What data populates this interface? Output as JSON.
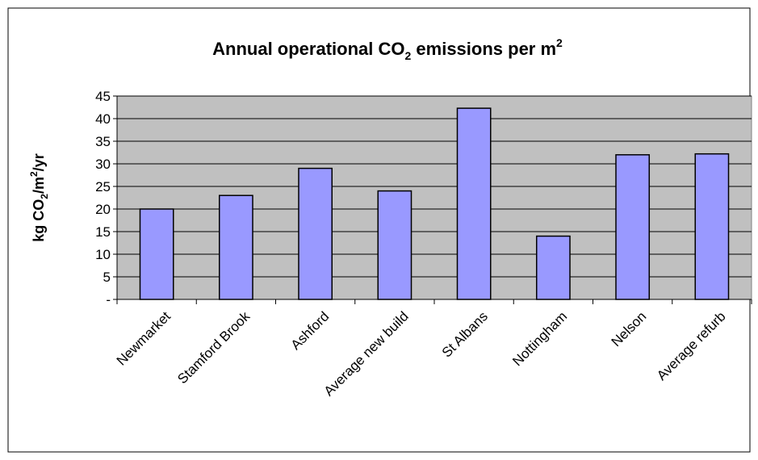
{
  "chart_data": {
    "type": "bar",
    "title_prefix": "Annual operational CO",
    "title_sub": "2",
    "title_mid": " emissions per m",
    "title_sup": "2",
    "ylabel_prefix": "kg CO",
    "ylabel_sub": "2",
    "ylabel_mid": "/m",
    "ylabel_sup": "2",
    "ylabel_suffix": "/yr",
    "categories": [
      "Newmarket",
      "Stamford Brook",
      "Ashford",
      "Average new build",
      "St Albans",
      "Nottingham",
      "Nelson",
      "Average refurb"
    ],
    "values": [
      20,
      23,
      29,
      24,
      42.3,
      14,
      32,
      32.2
    ],
    "ylim": [
      0,
      45
    ],
    "ytick_values": [
      0,
      5,
      10,
      15,
      20,
      25,
      30,
      35,
      40,
      45
    ],
    "ytick_labels": [
      "-",
      "5",
      "10",
      "15",
      "20",
      "25",
      "30",
      "35",
      "40",
      "45"
    ],
    "plot_background": "#c0c0c0",
    "bar_color": "#9999ff",
    "grid": true,
    "legend": "none"
  }
}
